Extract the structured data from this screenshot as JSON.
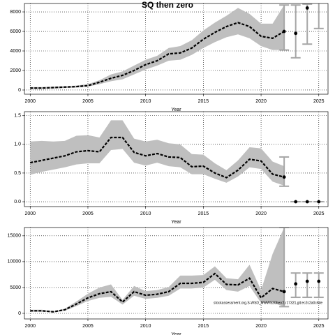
{
  "chart_data": [
    {
      "type": "line",
      "title": "SQ then zero",
      "xlabel": "Year",
      "x": [
        2000,
        2001,
        2002,
        2003,
        2004,
        2005,
        2006,
        2007,
        2008,
        2009,
        2010,
        2011,
        2012,
        2013,
        2014,
        2015,
        2016,
        2017,
        2018,
        2019,
        2020,
        2021,
        2022
      ],
      "values": [
        200,
        200,
        250,
        300,
        350,
        450,
        800,
        1200,
        1500,
        2000,
        2600,
        3000,
        3700,
        3800,
        4300,
        5200,
        5900,
        6500,
        6900,
        6500,
        5500,
        5300,
        6000
      ],
      "lower": [
        100,
        100,
        150,
        200,
        250,
        350,
        600,
        900,
        1100,
        1600,
        2100,
        2500,
        3000,
        3100,
        3600,
        4300,
        4900,
        5400,
        5700,
        5300,
        4500,
        4100,
        4100
      ],
      "upper": [
        300,
        300,
        350,
        400,
        450,
        600,
        1000,
        1600,
        1900,
        2500,
        3100,
        3500,
        4300,
        4500,
        5100,
        6100,
        6900,
        7600,
        8400,
        7800,
        6800,
        6800,
        8700
      ],
      "projection": {
        "x": [
          2022,
          2023,
          2024,
          2025
        ],
        "values": [
          6000,
          5800,
          8400,
          null
        ],
        "lower": [
          4100,
          3300,
          4700,
          6300
        ],
        "upper": [
          8700,
          8700,
          8800,
          9000
        ]
      },
      "color": "#000000",
      "band_color": "#bfbfbf",
      "bar_color": "#a6a6a6",
      "xlim": [
        1999.5,
        2025.8
      ],
      "xticks": [
        2000,
        2005,
        2010,
        2015,
        2020,
        2025
      ],
      "ylim": [
        -430,
        8860
      ],
      "yticks": [
        0,
        2000,
        4000,
        6000,
        8000
      ],
      "grid": true
    },
    {
      "type": "line",
      "xlabel": "Year",
      "x": [
        2000,
        2001,
        2002,
        2003,
        2004,
        2005,
        2006,
        2007,
        2008,
        2009,
        2010,
        2011,
        2012,
        2013,
        2014,
        2015,
        2016,
        2017,
        2018,
        2019,
        2020,
        2021,
        2022
      ],
      "values": [
        0.68,
        0.72,
        0.76,
        0.8,
        0.87,
        0.89,
        0.87,
        1.12,
        1.12,
        0.86,
        0.8,
        0.84,
        0.78,
        0.77,
        0.61,
        0.62,
        0.5,
        0.42,
        0.55,
        0.74,
        0.71,
        0.48,
        0.43
      ],
      "lower": [
        0.47,
        0.52,
        0.56,
        0.6,
        0.65,
        0.67,
        0.67,
        0.9,
        0.92,
        0.68,
        0.63,
        0.68,
        0.62,
        0.6,
        0.48,
        0.48,
        0.4,
        0.33,
        0.44,
        0.6,
        0.57,
        0.35,
        0.28
      ],
      "upper": [
        1.05,
        1.06,
        1.05,
        1.06,
        1.15,
        1.16,
        1.12,
        1.42,
        1.42,
        1.1,
        1.05,
        1.08,
        1.02,
        1.0,
        0.83,
        0.82,
        0.67,
        0.55,
        0.72,
        0.95,
        0.93,
        0.7,
        0.62
      ],
      "projection": {
        "x": [
          2022,
          2023,
          2024,
          2025
        ],
        "values": [
          0.43,
          0,
          0,
          0
        ],
        "lower": [
          0.27,
          0,
          0,
          0
        ],
        "upper": [
          0.78,
          0,
          0,
          0
        ]
      },
      "color": "#000000",
      "band_color": "#bfbfbf",
      "bar_color": "#a6a6a6",
      "xlim": [
        1999.5,
        2025.8
      ],
      "xticks": [
        2000,
        2005,
        2010,
        2015,
        2020,
        2025
      ],
      "ylim": [
        -0.085,
        1.57
      ],
      "yticks": [
        {
          "value": 0,
          "label": "0.0"
        },
        {
          "value": 0.5,
          "label": "0.5"
        },
        {
          "value": 1,
          "label": "1.0"
        },
        {
          "value": 1.5,
          "label": "1.5"
        }
      ],
      "grid": true
    },
    {
      "type": "line",
      "xlabel": "Year",
      "annotation": "stockassessment.org,S-WSD_NWWS20herr2,r17321,git:ec2c2a0c6de",
      "x": [
        2000,
        2001,
        2002,
        2003,
        2004,
        2005,
        2006,
        2007,
        2008,
        2009,
        2010,
        2011,
        2012,
        2013,
        2014,
        2015,
        2016,
        2017,
        2018,
        2019,
        2020,
        2021,
        2022
      ],
      "values": [
        500,
        500,
        300,
        700,
        1800,
        3000,
        3800,
        4200,
        2200,
        4200,
        3500,
        3700,
        4200,
        5800,
        5800,
        6000,
        7700,
        5600,
        5500,
        6800,
        3000,
        4800,
        4200
      ],
      "lower": [
        300,
        300,
        200,
        500,
        1400,
        2400,
        3000,
        3200,
        1700,
        3400,
        2800,
        3000,
        3400,
        4800,
        4800,
        5000,
        6500,
        4500,
        4200,
        5300,
        2000,
        2100,
        1300
      ],
      "upper": [
        700,
        700,
        400,
        900,
        2300,
        3800,
        5000,
        5600,
        2600,
        5300,
        4300,
        4500,
        5100,
        7300,
        7300,
        7400,
        9100,
        6800,
        6600,
        9400,
        4500,
        11500,
        16600
      ],
      "projection": {
        "x": [
          2022,
          2023,
          2024,
          2025
        ],
        "values": [
          4200,
          5700,
          6200,
          6200
        ],
        "lower": [
          1300,
          3100,
          3100,
          3100
        ],
        "upper": [
          16600,
          7800,
          7800,
          7800
        ]
      },
      "color": "#000000",
      "band_color": "#bfbfbf",
      "bar_color": "#a6a6a6",
      "xlim": [
        1999.5,
        2025.8
      ],
      "xticks": [
        2000,
        2005,
        2010,
        2015,
        2020,
        2025
      ],
      "ylim": [
        -1080,
        16600
      ],
      "yticks": [
        0,
        5000,
        10000,
        15000
      ],
      "grid": true
    }
  ]
}
